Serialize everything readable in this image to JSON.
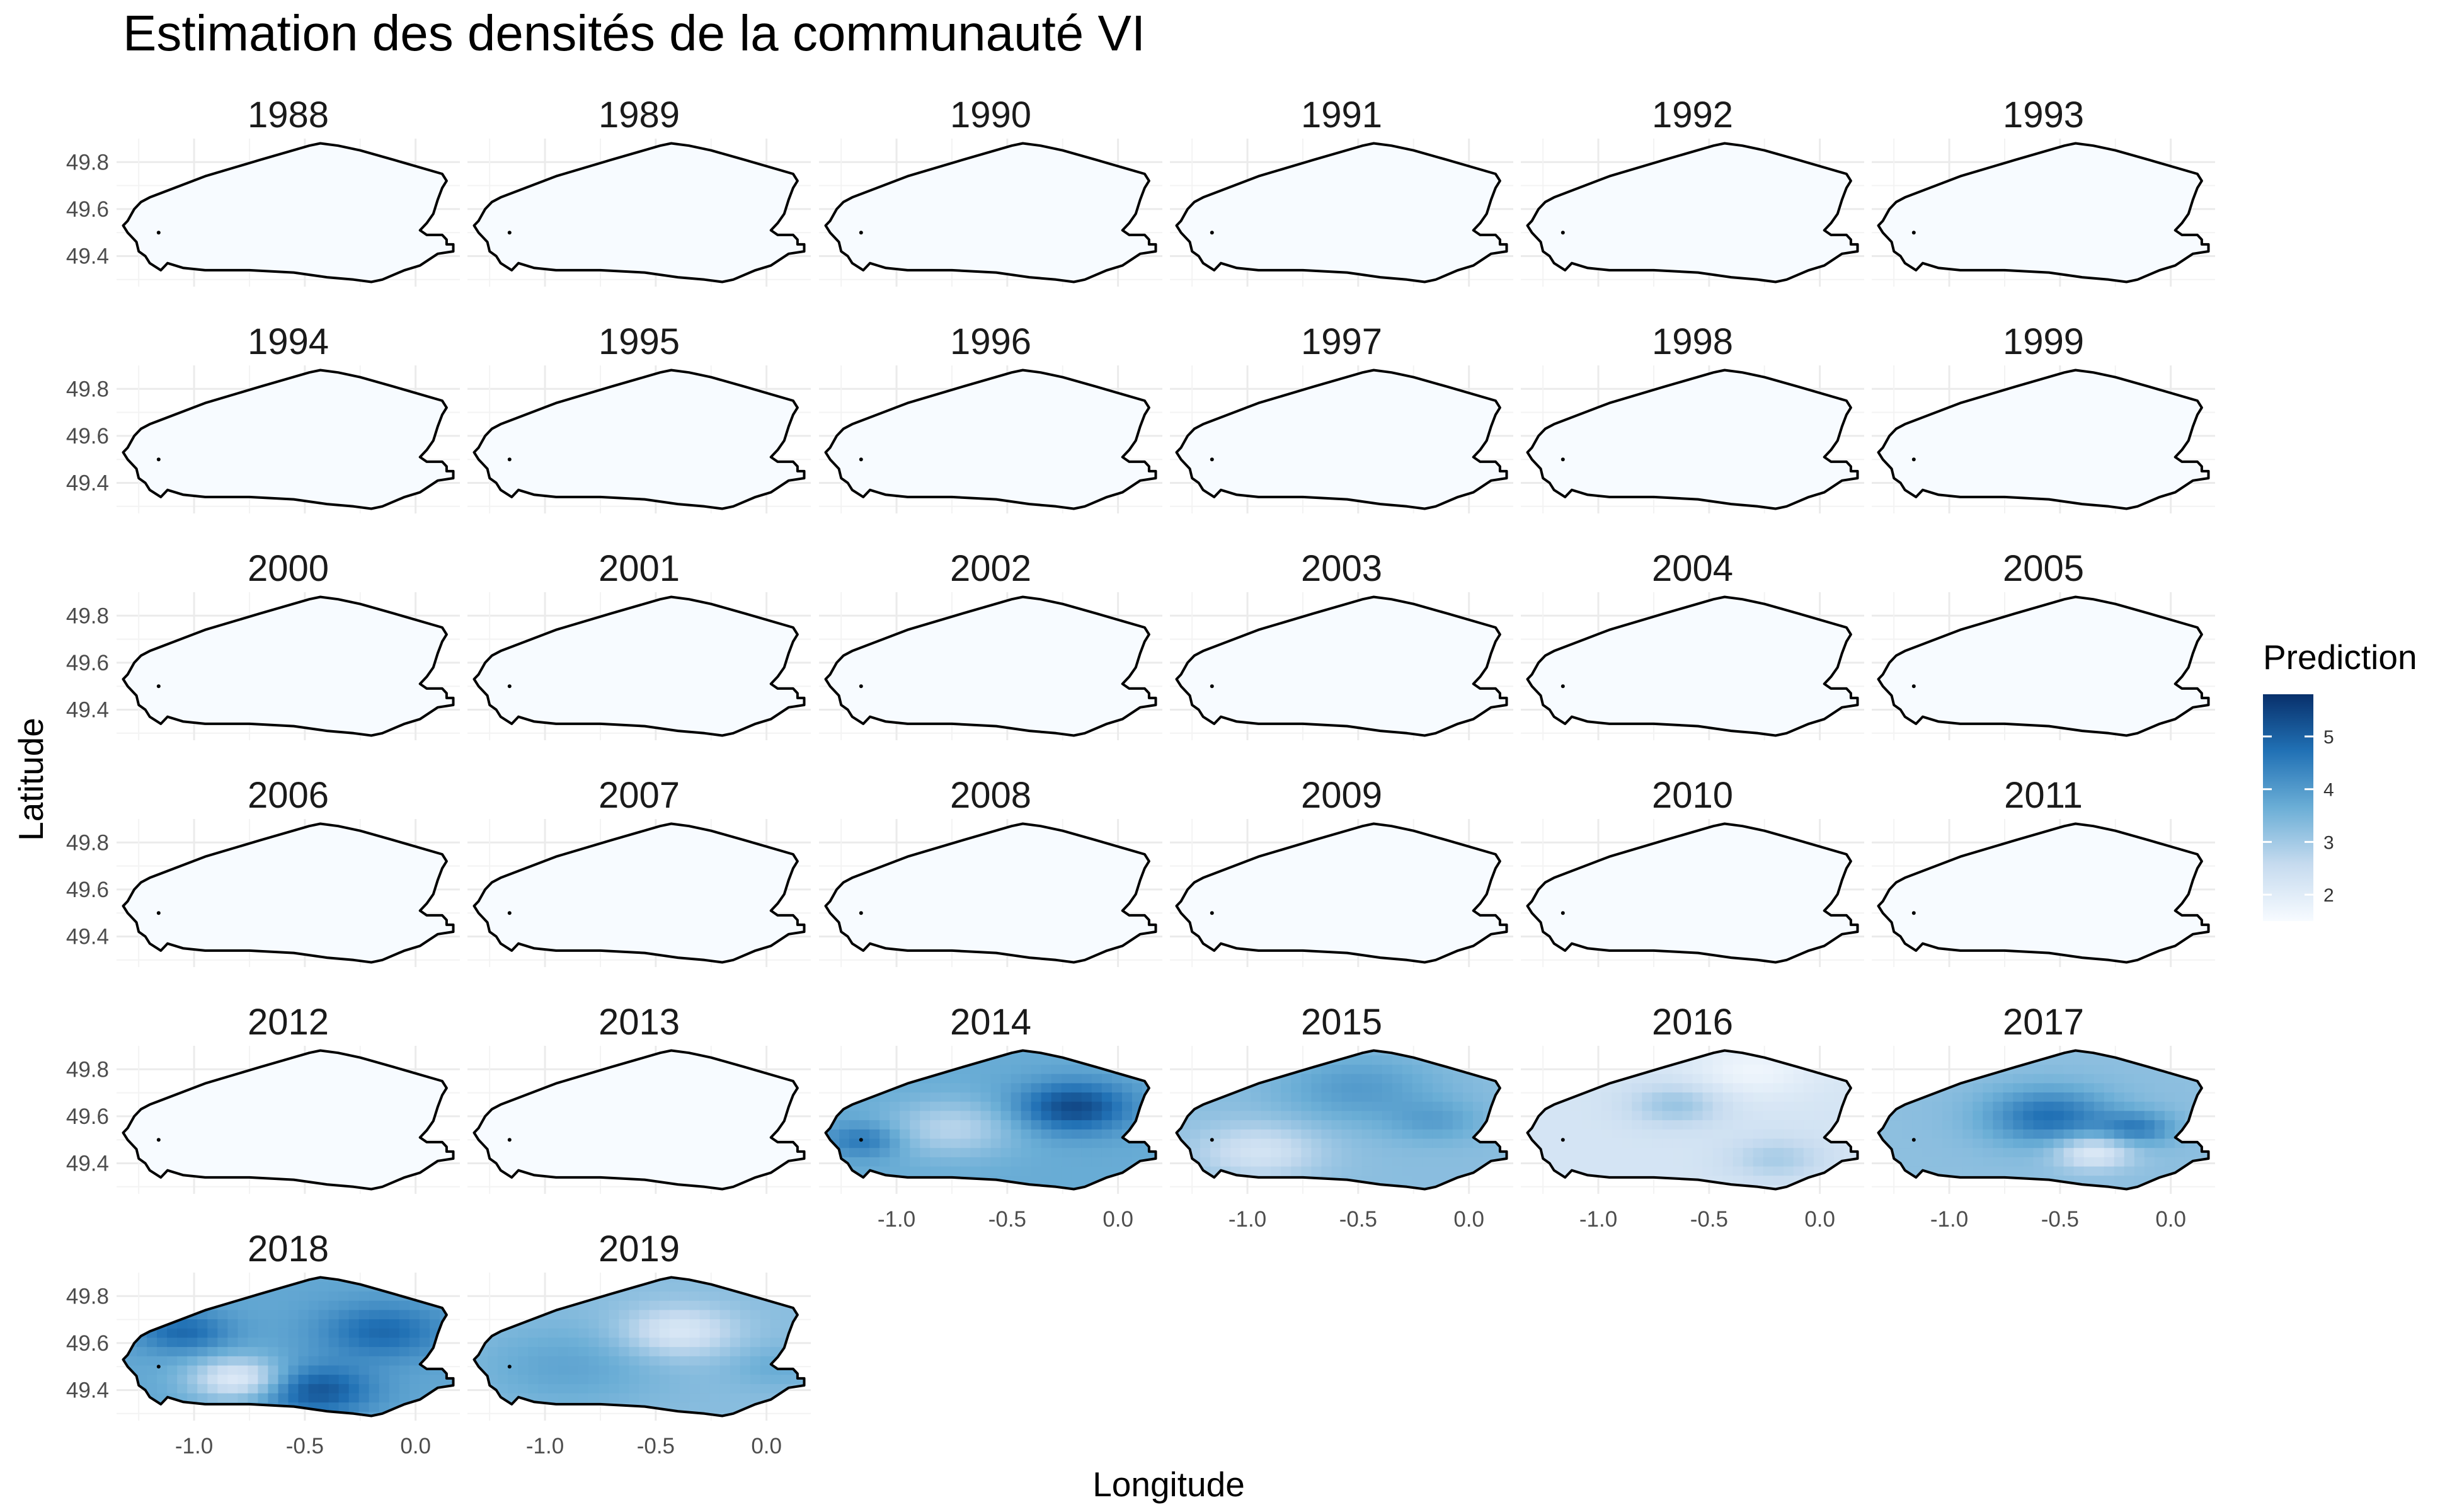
{
  "chart_data": {
    "type": "heatmap",
    "title": "Estimation des densités de la communauté VI",
    "xlabel": "Longitude",
    "ylabel": "Latitude",
    "x_ticks": [
      "-1.0",
      "-0.5",
      "0.0"
    ],
    "x_tick_values": [
      -1.0,
      -0.5,
      0.0
    ],
    "y_ticks": [
      "49.4",
      "49.6",
      "49.8"
    ],
    "y_tick_values": [
      49.4,
      49.6,
      49.8
    ],
    "xlim": [
      -1.35,
      0.2
    ],
    "ylim": [
      49.27,
      49.9
    ],
    "grid": true,
    "legend": {
      "title": "Prediction",
      "position": "right",
      "ticks": [
        "2",
        "3",
        "4",
        "5"
      ],
      "tick_values": [
        2,
        3,
        4,
        5
      ],
      "range": [
        1.5,
        5.8
      ],
      "colors": [
        "#f7fbff",
        "#c6dbef",
        "#6baed6",
        "#2171b5",
        "#08306b"
      ]
    },
    "panels": [
      {
        "year": "1988",
        "level": 0
      },
      {
        "year": "1989",
        "level": 0
      },
      {
        "year": "1990",
        "level": 0
      },
      {
        "year": "1991",
        "level": 0
      },
      {
        "year": "1992",
        "level": 0
      },
      {
        "year": "1993",
        "level": 0
      },
      {
        "year": "1994",
        "level": 0
      },
      {
        "year": "1995",
        "level": 0
      },
      {
        "year": "1996",
        "level": 0
      },
      {
        "year": "1997",
        "level": 0
      },
      {
        "year": "1998",
        "level": 0
      },
      {
        "year": "1999",
        "level": 0
      },
      {
        "year": "2000",
        "level": 0
      },
      {
        "year": "2001",
        "level": 0
      },
      {
        "year": "2002",
        "level": 0
      },
      {
        "year": "2003",
        "level": 0
      },
      {
        "year": "2004",
        "level": 0
      },
      {
        "year": "2005",
        "level": 0
      },
      {
        "year": "2006",
        "level": 0
      },
      {
        "year": "2007",
        "level": 0
      },
      {
        "year": "2008",
        "level": 0
      },
      {
        "year": "2009",
        "level": 0
      },
      {
        "year": "2010",
        "level": 0
      },
      {
        "year": "2011",
        "level": 0
      },
      {
        "year": "2012",
        "level": 0
      },
      {
        "year": "2013",
        "level": 0
      },
      {
        "year": "2014",
        "level": 4.6
      },
      {
        "year": "2015",
        "level": 3.6
      },
      {
        "year": "2016",
        "level": 2.7
      },
      {
        "year": "2017",
        "level": 4.1
      },
      {
        "year": "2018",
        "level": 4.4
      },
      {
        "year": "2019",
        "level": 3.4
      }
    ]
  }
}
